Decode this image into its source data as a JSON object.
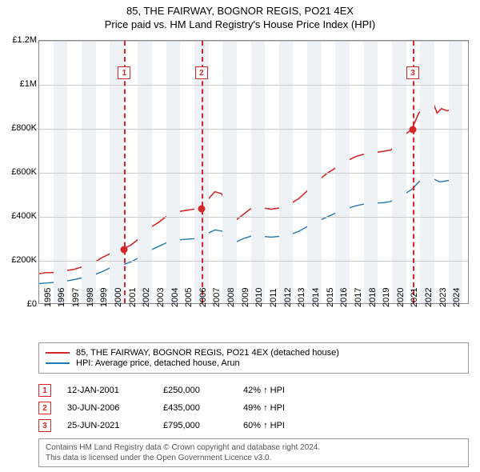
{
  "title1": "85, THE FAIRWAY, BOGNOR REGIS, PO21 4EX",
  "title2": "Price paid vs. HM Land Registry's House Price Index (HPI)",
  "chart": {
    "type": "line",
    "background_color": "#ffffff",
    "band_color": "#eef2f7",
    "grid_color": "#cccccc",
    "border_color": "#888888",
    "ylim": [
      0,
      1200000
    ],
    "ytick_step": 200000,
    "y_labels": [
      "£0",
      "£200K",
      "£400K",
      "£600K",
      "£800K",
      "£1M",
      "£1.2M"
    ],
    "x_min": 1995,
    "x_max": 2025.5,
    "x_labels": [
      "1995",
      "1996",
      "1997",
      "1998",
      "1999",
      "2000",
      "2001",
      "2002",
      "2003",
      "2004",
      "2005",
      "2006",
      "2007",
      "2008",
      "2009",
      "2010",
      "2011",
      "2012",
      "2013",
      "2014",
      "2015",
      "2016",
      "2017",
      "2018",
      "2019",
      "2020",
      "2021",
      "2022",
      "2023",
      "2024"
    ],
    "series": [
      {
        "name": "price_paid",
        "color": "#d62728",
        "width": 1.6,
        "points": [
          [
            1995,
            135000
          ],
          [
            1995.5,
            140000
          ],
          [
            1996,
            140000
          ],
          [
            1996.5,
            145000
          ],
          [
            1997,
            150000
          ],
          [
            1997.5,
            155000
          ],
          [
            1998,
            165000
          ],
          [
            1998.5,
            175000
          ],
          [
            1999,
            190000
          ],
          [
            1999.5,
            210000
          ],
          [
            2000,
            225000
          ],
          [
            2000.5,
            240000
          ],
          [
            2001,
            250000
          ],
          [
            2001.5,
            265000
          ],
          [
            2002,
            290000
          ],
          [
            2002.5,
            320000
          ],
          [
            2003,
            350000
          ],
          [
            2003.5,
            370000
          ],
          [
            2004,
            395000
          ],
          [
            2004.5,
            415000
          ],
          [
            2005,
            420000
          ],
          [
            2005.5,
            425000
          ],
          [
            2006,
            430000
          ],
          [
            2006.5,
            435000
          ],
          [
            2007,
            475000
          ],
          [
            2007.5,
            510000
          ],
          [
            2008,
            500000
          ],
          [
            2008.3,
            440000
          ],
          [
            2008.6,
            390000
          ],
          [
            2009,
            380000
          ],
          [
            2009.5,
            405000
          ],
          [
            2010,
            430000
          ],
          [
            2010.5,
            440000
          ],
          [
            2011,
            435000
          ],
          [
            2011.5,
            430000
          ],
          [
            2012,
            435000
          ],
          [
            2012.5,
            445000
          ],
          [
            2013,
            460000
          ],
          [
            2013.5,
            480000
          ],
          [
            2014,
            510000
          ],
          [
            2014.5,
            540000
          ],
          [
            2015,
            570000
          ],
          [
            2015.5,
            595000
          ],
          [
            2016,
            615000
          ],
          [
            2016.5,
            640000
          ],
          [
            2017,
            655000
          ],
          [
            2017.5,
            670000
          ],
          [
            2018,
            680000
          ],
          [
            2018.5,
            685000
          ],
          [
            2019,
            690000
          ],
          [
            2019.5,
            695000
          ],
          [
            2020,
            700000
          ],
          [
            2020.5,
            730000
          ],
          [
            2021,
            770000
          ],
          [
            2021.5,
            795000
          ],
          [
            2022,
            870000
          ],
          [
            2022.5,
            900000
          ],
          [
            2023,
            920000
          ],
          [
            2023.3,
            870000
          ],
          [
            2023.6,
            890000
          ],
          [
            2024,
            880000
          ],
          [
            2024.5,
            885000
          ],
          [
            2025,
            870000
          ]
        ]
      },
      {
        "name": "hpi",
        "color": "#1f77b4",
        "width": 1.4,
        "points": [
          [
            1995,
            90000
          ],
          [
            1995.5,
            92000
          ],
          [
            1996,
            95000
          ],
          [
            1996.5,
            98000
          ],
          [
            1997,
            102000
          ],
          [
            1997.5,
            108000
          ],
          [
            1998,
            115000
          ],
          [
            1998.5,
            122000
          ],
          [
            1999,
            132000
          ],
          [
            1999.5,
            145000
          ],
          [
            2000,
            160000
          ],
          [
            2000.5,
            170000
          ],
          [
            2001,
            178000
          ],
          [
            2001.5,
            188000
          ],
          [
            2002,
            205000
          ],
          [
            2002.5,
            225000
          ],
          [
            2003,
            245000
          ],
          [
            2003.5,
            260000
          ],
          [
            2004,
            275000
          ],
          [
            2004.5,
            285000
          ],
          [
            2005,
            290000
          ],
          [
            2005.5,
            293000
          ],
          [
            2006,
            295000
          ],
          [
            2006.5,
            300000
          ],
          [
            2007,
            320000
          ],
          [
            2007.5,
            335000
          ],
          [
            2008,
            330000
          ],
          [
            2008.5,
            300000
          ],
          [
            2009,
            280000
          ],
          [
            2009.5,
            295000
          ],
          [
            2010,
            305000
          ],
          [
            2010.5,
            310000
          ],
          [
            2011,
            305000
          ],
          [
            2011.5,
            302000
          ],
          [
            2012,
            305000
          ],
          [
            2012.5,
            310000
          ],
          [
            2013,
            318000
          ],
          [
            2013.5,
            330000
          ],
          [
            2014,
            348000
          ],
          [
            2014.5,
            365000
          ],
          [
            2015,
            380000
          ],
          [
            2015.5,
            395000
          ],
          [
            2016,
            410000
          ],
          [
            2016.5,
            425000
          ],
          [
            2017,
            435000
          ],
          [
            2017.5,
            445000
          ],
          [
            2018,
            452000
          ],
          [
            2018.5,
            456000
          ],
          [
            2019,
            458000
          ],
          [
            2019.5,
            460000
          ],
          [
            2020,
            465000
          ],
          [
            2020.5,
            480000
          ],
          [
            2021,
            500000
          ],
          [
            2021.5,
            520000
          ],
          [
            2022,
            555000
          ],
          [
            2022.5,
            575000
          ],
          [
            2023,
            570000
          ],
          [
            2023.5,
            555000
          ],
          [
            2024,
            560000
          ],
          [
            2024.5,
            565000
          ],
          [
            2025,
            555000
          ]
        ]
      }
    ],
    "markers": [
      {
        "num": "1",
        "year": 2001.03,
        "value": 250000
      },
      {
        "num": "2",
        "year": 2006.5,
        "value": 435000
      },
      {
        "num": "3",
        "year": 2021.48,
        "value": 795000
      }
    ],
    "marker_style": {
      "line_color": "#d62728",
      "box_border": "#d62728",
      "dot_color": "#d62728"
    }
  },
  "legend": {
    "items": [
      {
        "color": "#d62728",
        "label": "85, THE FAIRWAY, BOGNOR REGIS, PO21 4EX (detached house)"
      },
      {
        "color": "#1f77b4",
        "label": "HPI: Average price, detached house, Arun"
      }
    ]
  },
  "events": [
    {
      "num": "1",
      "date": "12-JAN-2001",
      "price": "£250,000",
      "hpi": "42% ↑ HPI"
    },
    {
      "num": "2",
      "date": "30-JUN-2006",
      "price": "£435,000",
      "hpi": "49% ↑ HPI"
    },
    {
      "num": "3",
      "date": "25-JUN-2021",
      "price": "£795,000",
      "hpi": "60% ↑ HPI"
    }
  ],
  "footer": {
    "line1": "Contains HM Land Registry data © Crown copyright and database right 2024.",
    "line2": "This data is licensed under the Open Government Licence v3.0."
  }
}
